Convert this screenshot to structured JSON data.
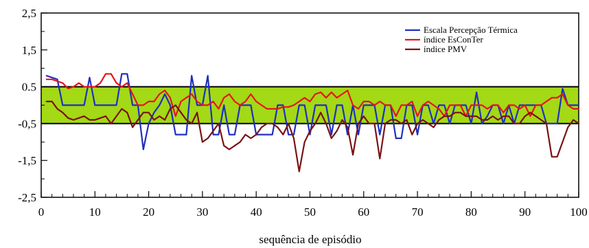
{
  "chart_data": {
    "type": "line",
    "xlabel": "sequência de episódio",
    "ylabel": "",
    "xlim": [
      0,
      100
    ],
    "ylim": [
      -2.5,
      2.5
    ],
    "x_ticks": [
      0,
      10,
      20,
      30,
      40,
      50,
      60,
      70,
      80,
      90,
      100
    ],
    "x_tick_labels": [
      "0",
      "10",
      "20",
      "30",
      "40",
      "50",
      "60",
      "70",
      "80",
      "90",
      "100"
    ],
    "y_ticks": [
      2.5,
      1.5,
      0.5,
      -0.5,
      -1.5,
      -2.5
    ],
    "y_tick_labels": [
      "2,5",
      "1,5",
      "0.5",
      "-0,5",
      "-1,5",
      "-2,5"
    ],
    "band": {
      "from": -0.5,
      "to": 0.5,
      "color": "#a3d915"
    },
    "legend_position": "top-right",
    "colors": {
      "blue": "#1f2fbf",
      "red": "#e8141a",
      "darkred": "#7a1212",
      "band": "#a3d915"
    },
    "series": [
      {
        "name": "Escala Percepção Térmica",
        "color": "#1f2fbf",
        "x": [
          1,
          2,
          3,
          4,
          5,
          6,
          7,
          8,
          9,
          10,
          11,
          12,
          13,
          14,
          15,
          16,
          17,
          18,
          19,
          20,
          21,
          22,
          23,
          24,
          25,
          26,
          27,
          28,
          29,
          30,
          31,
          32,
          33,
          34,
          35,
          36,
          37,
          38,
          39,
          40,
          41,
          42,
          43,
          44,
          45,
          46,
          47,
          48,
          49,
          50,
          51,
          52,
          53,
          54,
          55,
          56,
          57,
          58,
          59,
          60,
          61,
          62,
          63,
          64,
          65,
          66,
          67,
          68,
          69,
          70,
          71,
          72,
          73,
          74,
          75,
          76,
          77,
          78,
          79,
          80,
          81,
          82,
          83,
          84,
          85,
          86,
          87,
          88,
          89,
          90,
          91,
          92,
          93,
          94,
          95,
          96,
          97,
          98,
          99,
          100
        ],
        "y": [
          0.8,
          0.75,
          0.7,
          0.0,
          0.0,
          0.0,
          0.0,
          0.0,
          0.75,
          0.0,
          0.0,
          0.0,
          0.0,
          0.0,
          0.85,
          0.85,
          0.0,
          0.0,
          -1.2,
          -0.5,
          -0.2,
          0.0,
          0.3,
          0.0,
          -0.8,
          -0.8,
          -0.8,
          0.8,
          0.0,
          0.0,
          0.8,
          -0.8,
          -0.8,
          0.0,
          -0.8,
          -0.8,
          0.0,
          0.0,
          0.0,
          -0.8,
          -0.8,
          -0.8,
          -0.8,
          0.0,
          0.0,
          -0.8,
          -0.8,
          0.0,
          0.0,
          -0.8,
          0.0,
          0.0,
          0.0,
          -0.8,
          0.0,
          0.0,
          -0.8,
          0.0,
          -0.8,
          0.0,
          0.0,
          0.0,
          -0.8,
          0.0,
          0.0,
          -0.9,
          -0.9,
          0.0,
          0.0,
          -0.8,
          0.0,
          0.0,
          -0.5,
          0.0,
          0.0,
          -0.5,
          0.0,
          0.0,
          0.0,
          -0.5,
          0.35,
          -0.5,
          -0.3,
          0.0,
          0.0,
          -0.5,
          0.0,
          -0.5,
          0.0,
          0.0,
          0.0,
          0.0,
          0.0,
          -0.5,
          -0.5,
          -0.5,
          0.45,
          0.0,
          0.0,
          0.0
        ]
      },
      {
        "name": "índice EsConTer",
        "color": "#e8141a",
        "x": [
          1,
          2,
          3,
          4,
          5,
          6,
          7,
          8,
          9,
          10,
          11,
          12,
          13,
          14,
          15,
          16,
          17,
          18,
          19,
          20,
          21,
          22,
          23,
          24,
          25,
          26,
          27,
          28,
          29,
          30,
          31,
          32,
          33,
          34,
          35,
          36,
          37,
          38,
          39,
          40,
          41,
          42,
          43,
          44,
          45,
          46,
          47,
          48,
          49,
          50,
          51,
          52,
          53,
          54,
          55,
          56,
          57,
          58,
          59,
          60,
          61,
          62,
          63,
          64,
          65,
          66,
          67,
          68,
          69,
          70,
          71,
          72,
          73,
          74,
          75,
          76,
          77,
          78,
          79,
          80,
          81,
          82,
          83,
          84,
          85,
          86,
          87,
          88,
          89,
          90,
          91,
          92,
          93,
          94,
          95,
          96,
          97,
          98,
          99,
          100
        ],
        "y": [
          0.7,
          0.7,
          0.65,
          0.6,
          0.45,
          0.5,
          0.6,
          0.5,
          0.5,
          0.5,
          0.6,
          0.85,
          0.85,
          0.6,
          0.5,
          0.6,
          0.3,
          0.0,
          0.0,
          0.1,
          0.1,
          0.3,
          0.4,
          0.2,
          -0.3,
          0.1,
          0.2,
          0.3,
          0.1,
          0.0,
          0.0,
          0.1,
          -0.1,
          0.2,
          0.3,
          0.1,
          0.0,
          0.1,
          0.3,
          0.1,
          0.0,
          -0.1,
          -0.1,
          -0.1,
          -0.05,
          -0.05,
          0.0,
          0.1,
          0.2,
          0.1,
          0.3,
          0.35,
          0.2,
          0.35,
          0.2,
          0.3,
          0.4,
          0.0,
          -0.1,
          0.1,
          0.1,
          0.0,
          0.1,
          0.0,
          0.0,
          -0.3,
          0.0,
          0.0,
          0.1,
          -0.3,
          0.0,
          0.1,
          0.0,
          -0.1,
          -0.3,
          0.0,
          0.0,
          0.0,
          -0.3,
          0.0,
          0.0,
          0.0,
          -0.1,
          0.0,
          0.0,
          -0.2,
          0.0,
          0.0,
          -0.1,
          0.0,
          -0.3,
          0.0,
          0.0,
          0.1,
          0.2,
          0.2,
          0.3,
          0.0,
          -0.1,
          -0.1
        ]
      },
      {
        "name": "índice PMV",
        "color": "#7a1212",
        "x": [
          1,
          2,
          3,
          4,
          5,
          6,
          7,
          8,
          9,
          10,
          11,
          12,
          13,
          14,
          15,
          16,
          17,
          18,
          19,
          20,
          21,
          22,
          23,
          24,
          25,
          26,
          27,
          28,
          29,
          30,
          31,
          32,
          33,
          34,
          35,
          36,
          37,
          38,
          39,
          40,
          41,
          42,
          43,
          44,
          45,
          46,
          47,
          48,
          49,
          50,
          51,
          52,
          53,
          54,
          55,
          56,
          57,
          58,
          59,
          60,
          61,
          62,
          63,
          64,
          65,
          66,
          67,
          68,
          69,
          70,
          71,
          72,
          73,
          74,
          75,
          76,
          77,
          78,
          79,
          80,
          81,
          82,
          83,
          84,
          85,
          86,
          87,
          88,
          89,
          90,
          91,
          92,
          93,
          94,
          95,
          96,
          97,
          98,
          99,
          100
        ],
        "y": [
          0.1,
          0.1,
          -0.1,
          -0.2,
          -0.35,
          -0.4,
          -0.35,
          -0.3,
          -0.4,
          -0.4,
          -0.35,
          -0.3,
          -0.5,
          -0.3,
          -0.1,
          -0.2,
          -0.6,
          -0.4,
          -0.2,
          -0.2,
          -0.4,
          -0.3,
          -0.4,
          -0.1,
          0.0,
          -0.2,
          -0.4,
          -0.5,
          -0.2,
          -1.0,
          -0.9,
          -0.7,
          -0.5,
          -1.1,
          -1.2,
          -1.1,
          -1.0,
          -0.8,
          -0.9,
          -0.8,
          -0.6,
          -0.5,
          -0.5,
          -0.6,
          -0.8,
          -0.5,
          -0.9,
          -1.8,
          -1.0,
          -0.7,
          -0.5,
          -0.2,
          -0.5,
          -0.9,
          -0.7,
          -0.4,
          -0.6,
          -1.35,
          -0.5,
          -0.3,
          -0.5,
          -0.5,
          -1.45,
          -0.5,
          -0.4,
          -0.4,
          -0.5,
          -0.4,
          -0.8,
          -0.5,
          -0.4,
          -0.5,
          -0.6,
          -0.4,
          -0.3,
          -0.3,
          -0.2,
          -0.2,
          -0.3,
          -0.3,
          -0.3,
          -0.4,
          -0.4,
          -0.3,
          -0.4,
          -0.3,
          -0.3,
          -0.5,
          -0.5,
          -0.3,
          -0.2,
          -0.3,
          -0.4,
          -0.5,
          -1.4,
          -1.4,
          -1.0,
          -0.6,
          -0.4,
          -0.5
        ]
      }
    ]
  }
}
